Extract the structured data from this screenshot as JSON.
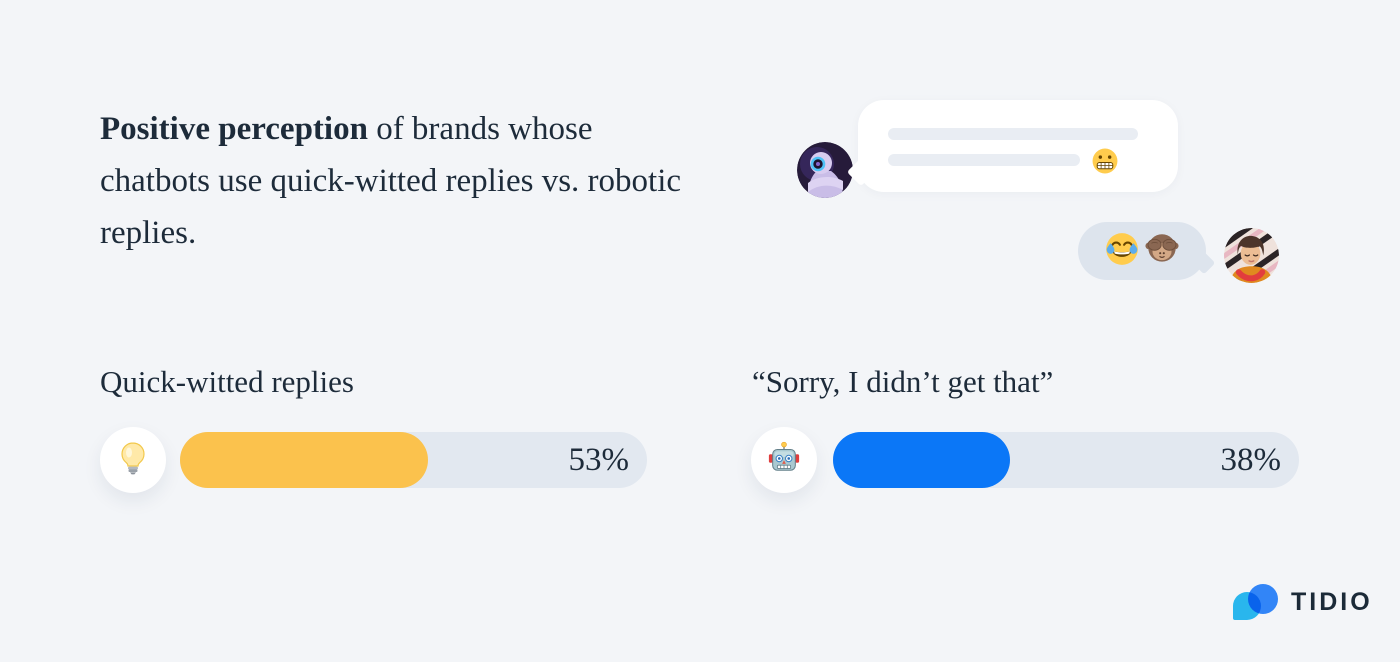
{
  "canvas": {
    "background": "#f3f5f8",
    "text_color": "#1d2b3a"
  },
  "title": {
    "bold": "Positive perception",
    "rest": " of brands whose chatbots use quick-witted replies vs. robotic replies."
  },
  "chat_illustration": {
    "bot_avatar_icon": "robot-photo-avatar",
    "user_avatar_icon": "person-photo-avatar",
    "bot_bubble_emoji": "grimacing-face-emoji",
    "user_bubble_emojis": [
      "face-with-tears-of-joy-emoji",
      "see-no-evil-monkey-emoji"
    ],
    "bubble_colors": {
      "bot": "#ffffff",
      "user": "#dde4ed",
      "skeleton_line": "#e9edf3"
    }
  },
  "chart_data": {
    "type": "bar",
    "orientation": "horizontal",
    "title": "Positive perception of brands whose chatbots use quick-witted replies vs. robotic replies.",
    "categories": [
      "Quick-witted replies",
      "“Sorry, I didn’t get that”"
    ],
    "values": [
      53,
      38
    ],
    "value_labels": [
      "53%",
      "38%"
    ],
    "unit": "%",
    "xlim": [
      0,
      100
    ],
    "bar_colors": [
      "#fbc24d",
      "#0b77f7"
    ],
    "track_color": "#e2e8f0",
    "icons": [
      "light-bulb-emoji",
      "robot-face-emoji"
    ],
    "grid": false,
    "legend": false
  },
  "logo": {
    "text": "TIDIO",
    "mark_colors": {
      "cyan": "#2bbef4",
      "blue": "#3285f7"
    }
  }
}
